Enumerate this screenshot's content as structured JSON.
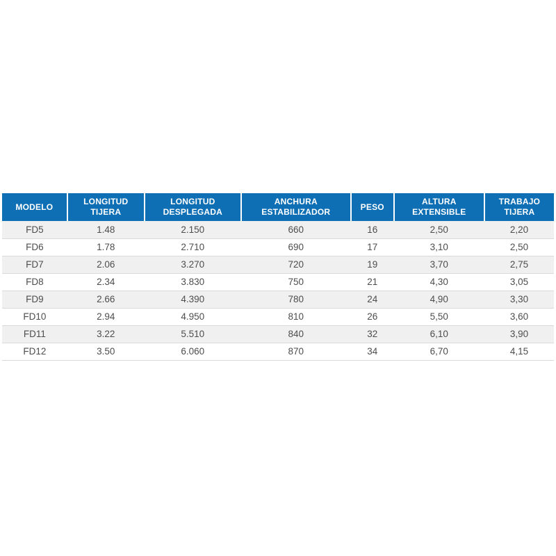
{
  "colors": {
    "page_background": "#ffffff",
    "header_background": "#0e6fb5",
    "header_text": "#ffffff",
    "row_stripe_background": "#f0f0f0",
    "row_background": "#ffffff",
    "row_border": "#d9d9d9",
    "body_text": "#4d4d4d"
  },
  "chart_data": {
    "type": "table",
    "columns": [
      {
        "key": "modelo",
        "label": "MODELO",
        "lines": [
          "MODELO"
        ]
      },
      {
        "key": "longitud-tijera",
        "label": "LONGITUD TIJERA",
        "lines": [
          "LONGITUD",
          "TIJERA"
        ]
      },
      {
        "key": "longitud-desplegada",
        "label": "LONGITUD DESPLEGADA",
        "lines": [
          "LONGITUD",
          "DESPLEGADA"
        ]
      },
      {
        "key": "anchura-estabilizador",
        "label": "ANCHURA ESTABILIZADOR",
        "lines": [
          "ANCHURA",
          "ESTABILIZADOR"
        ]
      },
      {
        "key": "peso",
        "label": "PESO",
        "lines": [
          "PESO"
        ]
      },
      {
        "key": "altura-extensible",
        "label": "ALTURA EXTENSIBLE",
        "lines": [
          "ALTURA",
          "EXTENSIBLE"
        ]
      },
      {
        "key": "trabajo-tijera",
        "label": "TRABAJO TIJERA",
        "lines": [
          "TRABAJO",
          "TIJERA"
        ]
      }
    ],
    "rows": [
      [
        "FD5",
        "1.48",
        "2.150",
        "660",
        "16",
        "2,50",
        "2,20"
      ],
      [
        "FD6",
        "1.78",
        "2.710",
        "690",
        "17",
        "3,10",
        "2,50"
      ],
      [
        "FD7",
        "2.06",
        "3.270",
        "720",
        "19",
        "3,70",
        "2,75"
      ],
      [
        "FD8",
        "2.34",
        "3.830",
        "750",
        "21",
        "4,30",
        "3,05"
      ],
      [
        "FD9",
        "2.66",
        "4.390",
        "780",
        "24",
        "4,90",
        "3,30"
      ],
      [
        "FD10",
        "2.94",
        "4.950",
        "810",
        "26",
        "5,50",
        "3,60"
      ],
      [
        "FD11",
        "3.22",
        "5.510",
        "840",
        "32",
        "6,10",
        "3,90"
      ],
      [
        "FD12",
        "3.50",
        "6.060",
        "870",
        "34",
        "6,70",
        "4,15"
      ]
    ],
    "striped_row_indices": [
      0,
      2,
      4,
      6
    ]
  }
}
